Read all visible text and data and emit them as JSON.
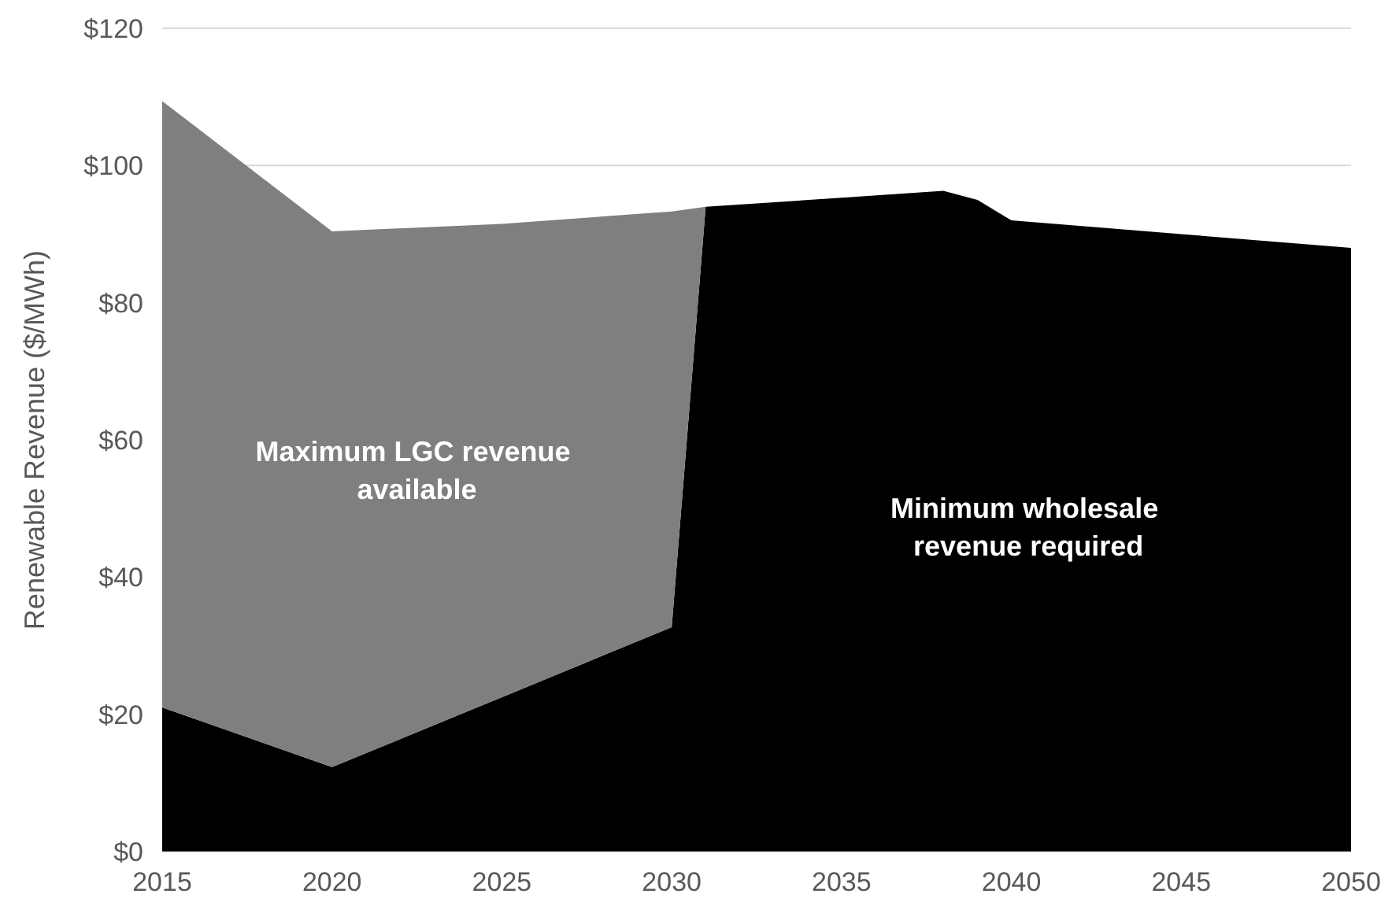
{
  "chart_data": {
    "type": "area",
    "stacked": true,
    "ylabel": "Renewable Revenue ($/MWh)",
    "x": [
      2015,
      2020,
      2025,
      2030,
      2031,
      2035,
      2038,
      2039,
      2040,
      2045,
      2050
    ],
    "series": [
      {
        "name": "Minimum wholesale revenue required",
        "color": "#000000",
        "values": [
          21,
          12.3,
          22.5,
          32.7,
          94,
          95.3,
          96.3,
          95,
          92,
          90,
          88
        ]
      },
      {
        "name": "Maximum LGC revenue available",
        "color": "#7f7f7f",
        "values": [
          88.4,
          78.1,
          69,
          60.6,
          0,
          0,
          0,
          0,
          0,
          0,
          0
        ]
      }
    ],
    "xlim": [
      2015,
      2050
    ],
    "xticks": [
      2015,
      2020,
      2025,
      2030,
      2035,
      2040,
      2045,
      2050
    ],
    "ylim": [
      0,
      120
    ],
    "yticks": [
      {
        "value": 0,
        "label": "$0"
      },
      {
        "value": 20,
        "label": "$20"
      },
      {
        "value": 40,
        "label": "$40"
      },
      {
        "value": 60,
        "label": "$60"
      },
      {
        "value": 80,
        "label": "$80"
      },
      {
        "value": 100,
        "label": "$100"
      },
      {
        "value": 120,
        "label": "$120"
      }
    ],
    "grid": "y"
  }
}
